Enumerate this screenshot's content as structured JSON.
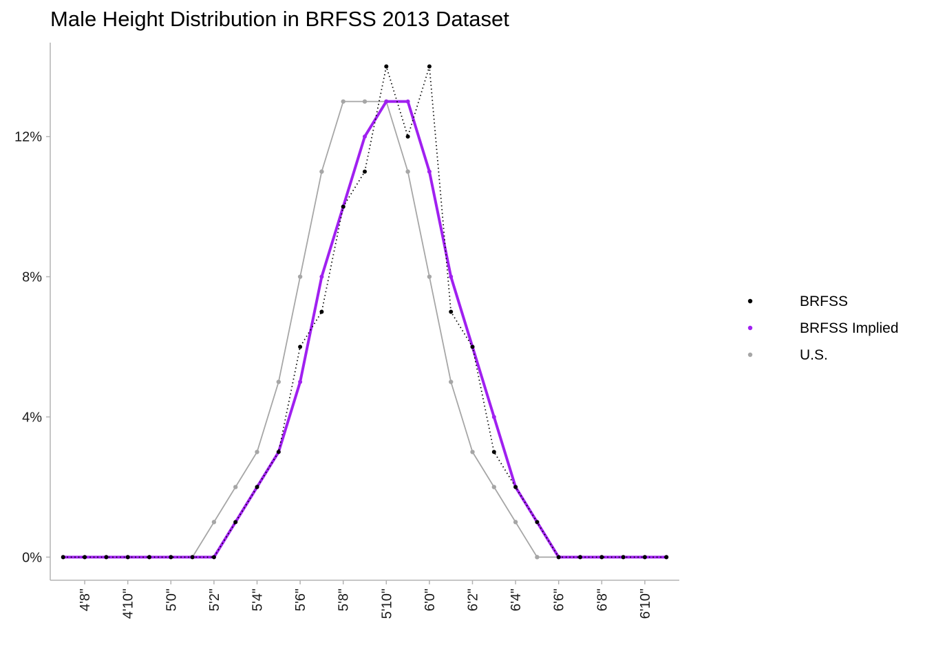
{
  "chart_data": {
    "type": "line",
    "title": "Male Height Distribution in BRFSS 2013 Dataset",
    "xlabel": "",
    "ylabel": "",
    "x": [
      55,
      56,
      57,
      58,
      59,
      60,
      61,
      62,
      63,
      64,
      65,
      66,
      67,
      68,
      69,
      70,
      71,
      72,
      73,
      74,
      75,
      76,
      77,
      78,
      79,
      80,
      81,
      82,
      83
    ],
    "xlim": [
      54.4,
      83.6
    ],
    "ylim": [
      -0.0066,
      0.1468
    ],
    "x_ticks": [
      {
        "value": 56,
        "label": "4'8\""
      },
      {
        "value": 58,
        "label": "4'10\""
      },
      {
        "value": 60,
        "label": "5'0\""
      },
      {
        "value": 62,
        "label": "5'2\""
      },
      {
        "value": 64,
        "label": "5'4\""
      },
      {
        "value": 66,
        "label": "5'6\""
      },
      {
        "value": 68,
        "label": "5'8\""
      },
      {
        "value": 70,
        "label": "5'10\""
      },
      {
        "value": 72,
        "label": "6'0\""
      },
      {
        "value": 74,
        "label": "6'2\""
      },
      {
        "value": 76,
        "label": "6'4\""
      },
      {
        "value": 78,
        "label": "6'6\""
      },
      {
        "value": 80,
        "label": "6'8\""
      },
      {
        "value": 82,
        "label": "6'10\""
      }
    ],
    "y_ticks": [
      {
        "value": 0.0,
        "label": "0%"
      },
      {
        "value": 0.04,
        "label": "4%"
      },
      {
        "value": 0.08,
        "label": "8%"
      },
      {
        "value": 0.12,
        "label": "12%"
      }
    ],
    "grid": false,
    "legend_position": "right",
    "series": [
      {
        "name": "U.S.",
        "color": "#a6a6a6",
        "line_style": "solid",
        "values": [
          0,
          0,
          0,
          0,
          0,
          0,
          0,
          0.01,
          0.02,
          0.03,
          0.05,
          0.08,
          0.11,
          0.13,
          0.13,
          0.13,
          0.11,
          0.08,
          0.05,
          0.03,
          0.02,
          0.01,
          0,
          0,
          0,
          0,
          0,
          0,
          0
        ]
      },
      {
        "name": "BRFSS",
        "color": "#000000",
        "line_style": "dotted",
        "values": [
          0,
          0,
          0,
          0,
          0,
          0,
          0,
          0,
          0.01,
          0.02,
          0.03,
          0.06,
          0.07,
          0.1,
          0.11,
          0.14,
          0.12,
          0.14,
          0.07,
          0.06,
          0.03,
          0.02,
          0.01,
          0,
          0,
          0,
          0,
          0,
          0
        ]
      },
      {
        "name": "BRFSS Implied",
        "color": "#a020f0",
        "line_style": "solid",
        "values": [
          0,
          0,
          0,
          0,
          0,
          0,
          0,
          0,
          0.01,
          0.02,
          0.03,
          0.05,
          0.08,
          0.1,
          0.12,
          0.13,
          0.13,
          0.11,
          0.08,
          0.06,
          0.04,
          0.02,
          0.01,
          0,
          0,
          0,
          0,
          0,
          0
        ]
      }
    ],
    "legend_order": [
      "BRFSS",
      "BRFSS Implied",
      "U.S."
    ]
  }
}
